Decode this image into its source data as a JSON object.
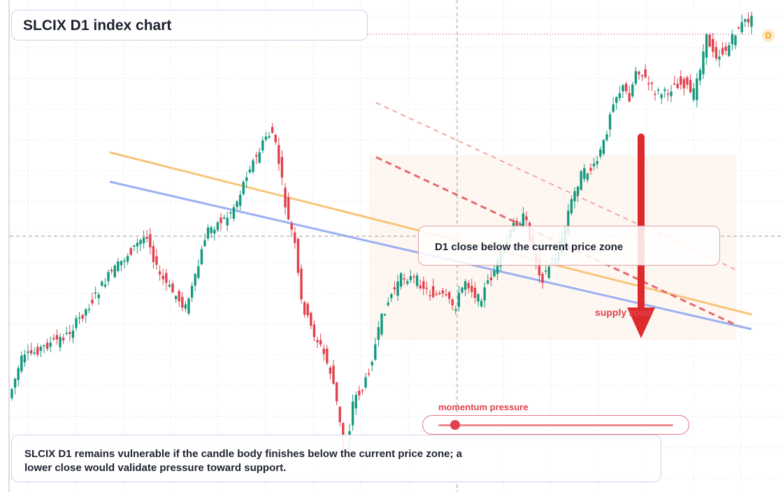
{
  "title": "SLCIX D1 index chart",
  "zone_label": "D1 close below the current price zone",
  "supply_label": "supply zone",
  "momentum_label": "momentum pressure",
  "momentum_value": 0.07,
  "caption": "SLCIX D1 remains vulnerable if the candle body finishes below the current price zone; a lower close would validate pressure toward support.",
  "marker_label": "D",
  "colors": {
    "up": "#16987e",
    "down": "#e0424e",
    "orange_line": "#f7c57a",
    "blue_line": "#9cb0f2",
    "red_dashed": "#e46a70",
    "pink_dashed": "#f1a8a8",
    "arrow": "#dd2a2c",
    "zone_fill": "#fdf0e6"
  },
  "chart_data": {
    "type": "candlestick",
    "timeframe": "D1",
    "symbol": "SLCIX",
    "y_direction": "price",
    "candles": []
  }
}
